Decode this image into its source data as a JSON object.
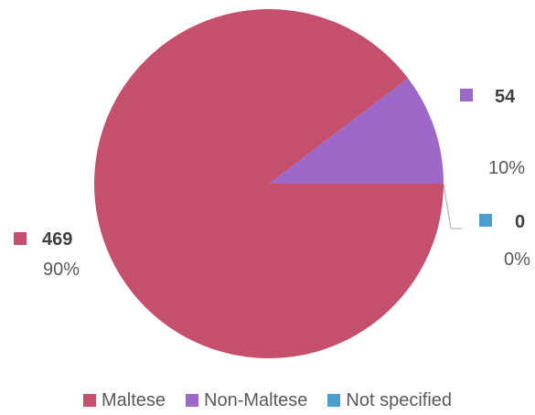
{
  "chart_data": {
    "type": "pie",
    "categories": [
      "Maltese",
      "Non-Maltese",
      "Not specified"
    ],
    "values": [
      469,
      54,
      0
    ],
    "percent_labels": [
      "90%",
      "10%",
      "0%"
    ],
    "colors": [
      "#c5506e",
      "#9e68c8",
      "#4a9fcc"
    ],
    "legend_position": "bottom"
  }
}
